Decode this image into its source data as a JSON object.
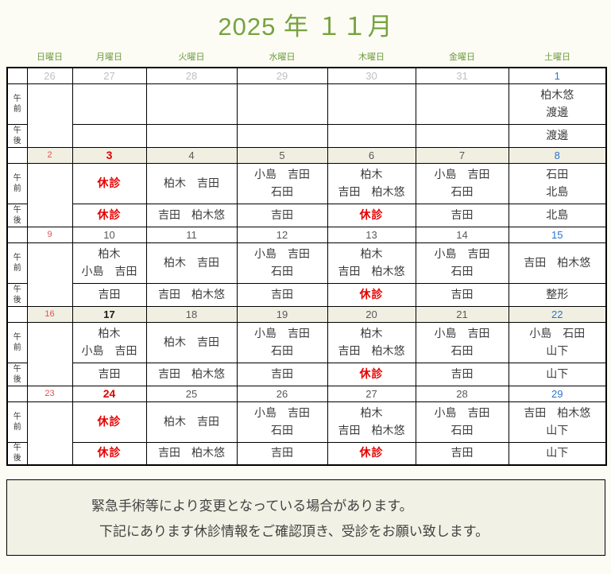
{
  "cal": {
    "title": "2025 年 １１月",
    "day_headers": [
      "日曜日",
      "月曜日",
      "火曜日",
      "水曜日",
      "木曜日",
      "金曜日",
      "土曜日"
    ],
    "time_labels": {
      "am": "午前",
      "pm": "午後"
    },
    "closed_label": "休診",
    "colors": {
      "title_green": "#76a33e",
      "header_green": "#6e9c3e",
      "holiday_red": "#e00000",
      "closed_red": "#e60000",
      "saturday_blue": "#2e74c9",
      "sunday_red": "#e05252",
      "prev_month_gray": "#bfbfbf",
      "weekday_gray": "#595959",
      "band_cream": "#f0efe2",
      "note_bg": "#f1f1e5"
    },
    "weeks": [
      {
        "dates": [
          "26",
          "27",
          "28",
          "29",
          "30",
          "31",
          "1"
        ],
        "am": [
          "",
          "",
          "",
          "",
          "",
          "柏木悠\n渡邊"
        ],
        "pm": [
          "",
          "",
          "",
          "",
          "",
          "渡邊"
        ]
      },
      {
        "dates": [
          "2",
          "3",
          "4",
          "5",
          "6",
          "7",
          "8"
        ],
        "am": [
          "休診",
          "柏木　吉田",
          "小島　吉田\n石田",
          "柏木\n吉田　柏木悠",
          "小島　吉田\n石田",
          "石田\n北島"
        ],
        "pm": [
          "休診",
          "吉田　柏木悠",
          "吉田",
          "休診",
          "吉田",
          "北島"
        ]
      },
      {
        "dates": [
          "9",
          "10",
          "11",
          "12",
          "13",
          "14",
          "15"
        ],
        "am": [
          "柏木\n小島　吉田",
          "柏木　吉田",
          "小島　吉田\n石田",
          "柏木\n吉田　柏木悠",
          "小島　吉田\n石田",
          "吉田　柏木悠"
        ],
        "pm": [
          "吉田",
          "吉田　柏木悠",
          "吉田",
          "休診",
          "吉田",
          "整形"
        ]
      },
      {
        "dates": [
          "16",
          "17",
          "18",
          "19",
          "20",
          "21",
          "22"
        ],
        "am": [
          "柏木\n小島　吉田",
          "柏木　吉田",
          "小島　吉田\n石田",
          "柏木\n吉田　柏木悠",
          "小島　吉田\n石田",
          "小島　石田\n山下"
        ],
        "pm": [
          "吉田",
          "吉田　柏木悠",
          "吉田",
          "休診",
          "吉田",
          "山下"
        ]
      },
      {
        "dates": [
          "23",
          "24",
          "25",
          "26",
          "27",
          "28",
          "29"
        ],
        "am": [
          "休診",
          "柏木　吉田",
          "小島　吉田\n石田",
          "柏木\n吉田　柏木悠",
          "小島　吉田\n石田",
          "吉田　柏木悠\n山下"
        ],
        "pm": [
          "休診",
          "吉田　柏木悠",
          "吉田",
          "休診",
          "吉田",
          "山下"
        ]
      }
    ],
    "notes": [
      "緊急手術等により変更となっている場合があります。",
      "下記にあります休診情報をご確認頂き、受診をお願い致します。"
    ]
  }
}
